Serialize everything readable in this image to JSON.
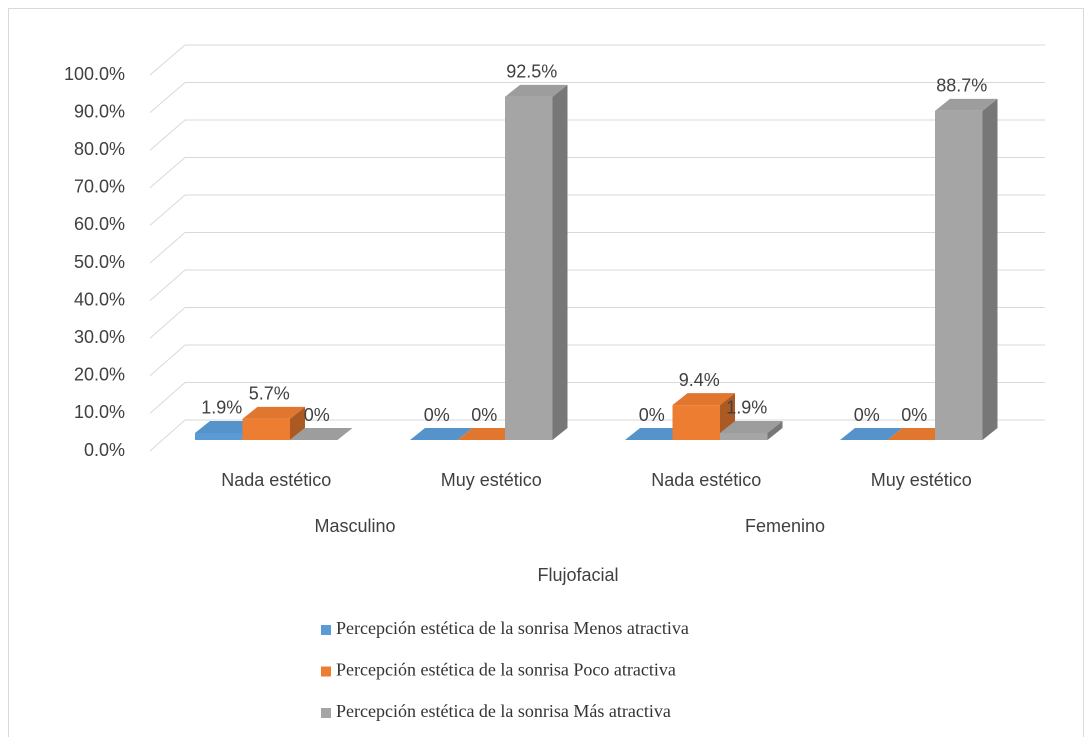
{
  "chart_data": {
    "type": "bar3d",
    "x_label": "Flujofacial",
    "groups": [
      "Masculino",
      "Femenino"
    ],
    "categories": [
      "Nada estético",
      "Muy estético",
      "Nada estético",
      "Muy estético"
    ],
    "series": [
      {
        "name": "Percepción estética de la sonrisa Menos atractiva",
        "color": "#5b9bd5",
        "values": [
          1.9,
          0,
          0,
          0
        ],
        "value_labels": [
          "1.9%",
          "0%",
          "0%",
          "0%"
        ]
      },
      {
        "name": "Percepción estética de la sonrisa Poco atractiva",
        "color": "#ed7d31",
        "values": [
          5.7,
          0,
          9.4,
          0
        ],
        "value_labels": [
          "5.7%",
          "0%",
          "9.4%",
          "0%"
        ]
      },
      {
        "name": "Percepción estética de la sonrisa Más atractiva",
        "color": "#a5a5a5",
        "values": [
          0,
          92.5,
          1.9,
          88.7
        ],
        "value_labels": [
          "0%",
          "92.5%",
          "1.9%",
          "88.7%"
        ]
      }
    ],
    "ylim": [
      0,
      100
    ],
    "yticks": [
      {
        "value": 0,
        "label": "0.0%"
      },
      {
        "value": 10,
        "label": "10.0%"
      },
      {
        "value": 20,
        "label": "20.0%"
      },
      {
        "value": 30,
        "label": "30.0%"
      },
      {
        "value": 40,
        "label": "40.0%"
      },
      {
        "value": 50,
        "label": "50.0%"
      },
      {
        "value": 60,
        "label": "60.0%"
      },
      {
        "value": 70,
        "label": "70.0%"
      },
      {
        "value": 80,
        "label": "80.0%"
      },
      {
        "value": 90,
        "label": "90.0%"
      },
      {
        "value": 100,
        "label": "100.0%"
      }
    ],
    "grid": true,
    "legend": "bottom"
  }
}
